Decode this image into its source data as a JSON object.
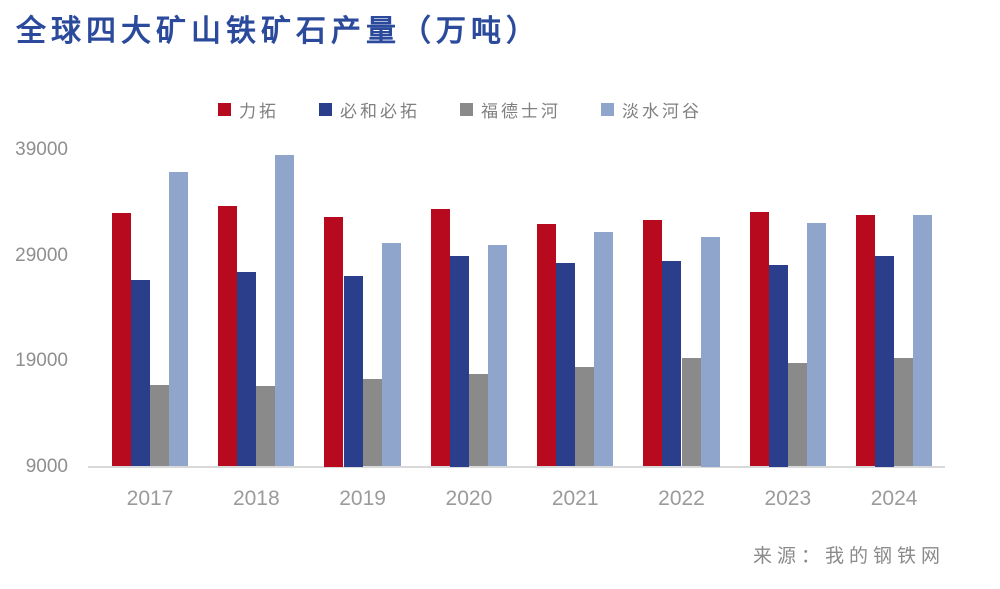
{
  "title": "全球四大矿山铁矿石产量（万吨）",
  "source_note": "来源：我的钢铁网",
  "colors": {
    "title": "#2b4a9b",
    "axis_text": "#8f8f8f",
    "axis_line": "#d9d9d9",
    "legend_text": "#808080"
  },
  "chart_data": {
    "type": "bar",
    "title": "全球四大矿山铁矿石产量（万吨）",
    "unit": "万吨",
    "categories": [
      "2017",
      "2018",
      "2019",
      "2020",
      "2021",
      "2022",
      "2023",
      "2024"
    ],
    "series": [
      {
        "name": "力拓",
        "color": "#b70a1e",
        "values": [
          33000,
          33700,
          32700,
          33400,
          32000,
          32400,
          33100,
          32800
        ]
      },
      {
        "name": "必和必拓",
        "color": "#2b3e8c",
        "values": [
          26700,
          27400,
          27100,
          29000,
          28300,
          28500,
          28100,
          29000
        ]
      },
      {
        "name": "福德士河",
        "color": "#8a8a8a",
        "values": [
          16700,
          16600,
          17300,
          17800,
          18400,
          19300,
          18800,
          19300
        ]
      },
      {
        "name": "淡水河谷",
        "color": "#90a5cc",
        "values": [
          36900,
          38500,
          30200,
          30000,
          31200,
          30800,
          32100,
          32800
        ]
      }
    ],
    "xlabel": "",
    "ylabel": "",
    "ylim": [
      9000,
      39000
    ],
    "yticks": [
      39000,
      29000,
      19000,
      9000
    ],
    "grid": false,
    "legend_position": "top"
  }
}
